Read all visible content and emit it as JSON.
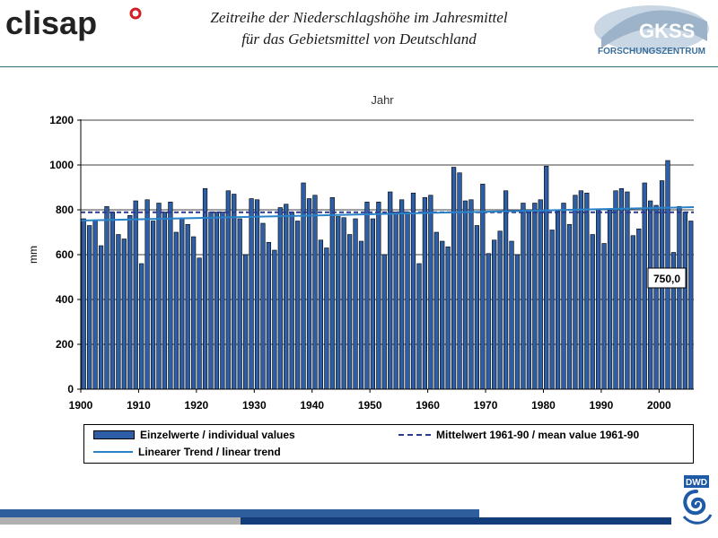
{
  "header": {
    "logo_text": "clisap",
    "title_line1": "Zeitreihe der Niederschlagshöhe im Jahresmittel",
    "title_line2": "für das Gebietsmittel von Deutschland",
    "partner_logo_text": "GKSS",
    "partner_logo_subtext": "FORSCHUNGSZENTRUM",
    "footer_logo_text": "DWD"
  },
  "chart_data": {
    "type": "bar",
    "title": "Jahr",
    "ylabel": "mm",
    "xlabel": "",
    "ylim": [
      0,
      1200
    ],
    "yticks": [
      0,
      200,
      400,
      600,
      800,
      1000,
      1200
    ],
    "xticks": [
      "1900",
      "1910",
      "1920",
      "1930",
      "1940",
      "1950",
      "1960",
      "1970",
      "1980",
      "1990",
      "2000"
    ],
    "grid": true,
    "legend_position": "bottom",
    "x_start_year": 1901,
    "values": [
      760,
      730,
      755,
      640,
      815,
      790,
      690,
      670,
      775,
      840,
      560,
      845,
      750,
      830,
      790,
      835,
      700,
      760,
      735,
      680,
      585,
      895,
      790,
      790,
      790,
      885,
      870,
      760,
      600,
      850,
      845,
      740,
      655,
      620,
      810,
      825,
      790,
      750,
      920,
      850,
      865,
      665,
      630,
      855,
      770,
      765,
      690,
      760,
      660,
      835,
      760,
      835,
      600,
      880,
      790,
      845,
      790,
      875,
      560,
      855,
      865,
      700,
      660,
      635,
      990,
      965,
      840,
      845,
      730,
      915,
      605,
      665,
      705,
      885,
      660,
      600,
      830,
      800,
      830,
      845,
      995,
      710,
      795,
      830,
      735,
      865,
      885,
      875,
      690,
      800,
      650,
      800,
      885,
      895,
      880,
      685,
      715,
      920,
      840,
      820,
      930,
      1020,
      610,
      815,
      790,
      750
    ],
    "series": [
      {
        "name": "Einzelwerte / individual values",
        "kind": "bar",
        "color": "#2e5ea6"
      },
      {
        "name": "Mittelwert 1961-90 / mean value 1961-90",
        "kind": "dashed",
        "value": 789,
        "color": "#2a3a8f"
      },
      {
        "name": "Linearer Trend / linear trend",
        "kind": "line",
        "start": 752,
        "end": 812,
        "color": "#2a83c9"
      }
    ],
    "annotation": "750,0"
  },
  "footer": {
    "stripe_colors": [
      "#2e5f9c",
      "#b0b0b0",
      "#123d7a"
    ]
  }
}
